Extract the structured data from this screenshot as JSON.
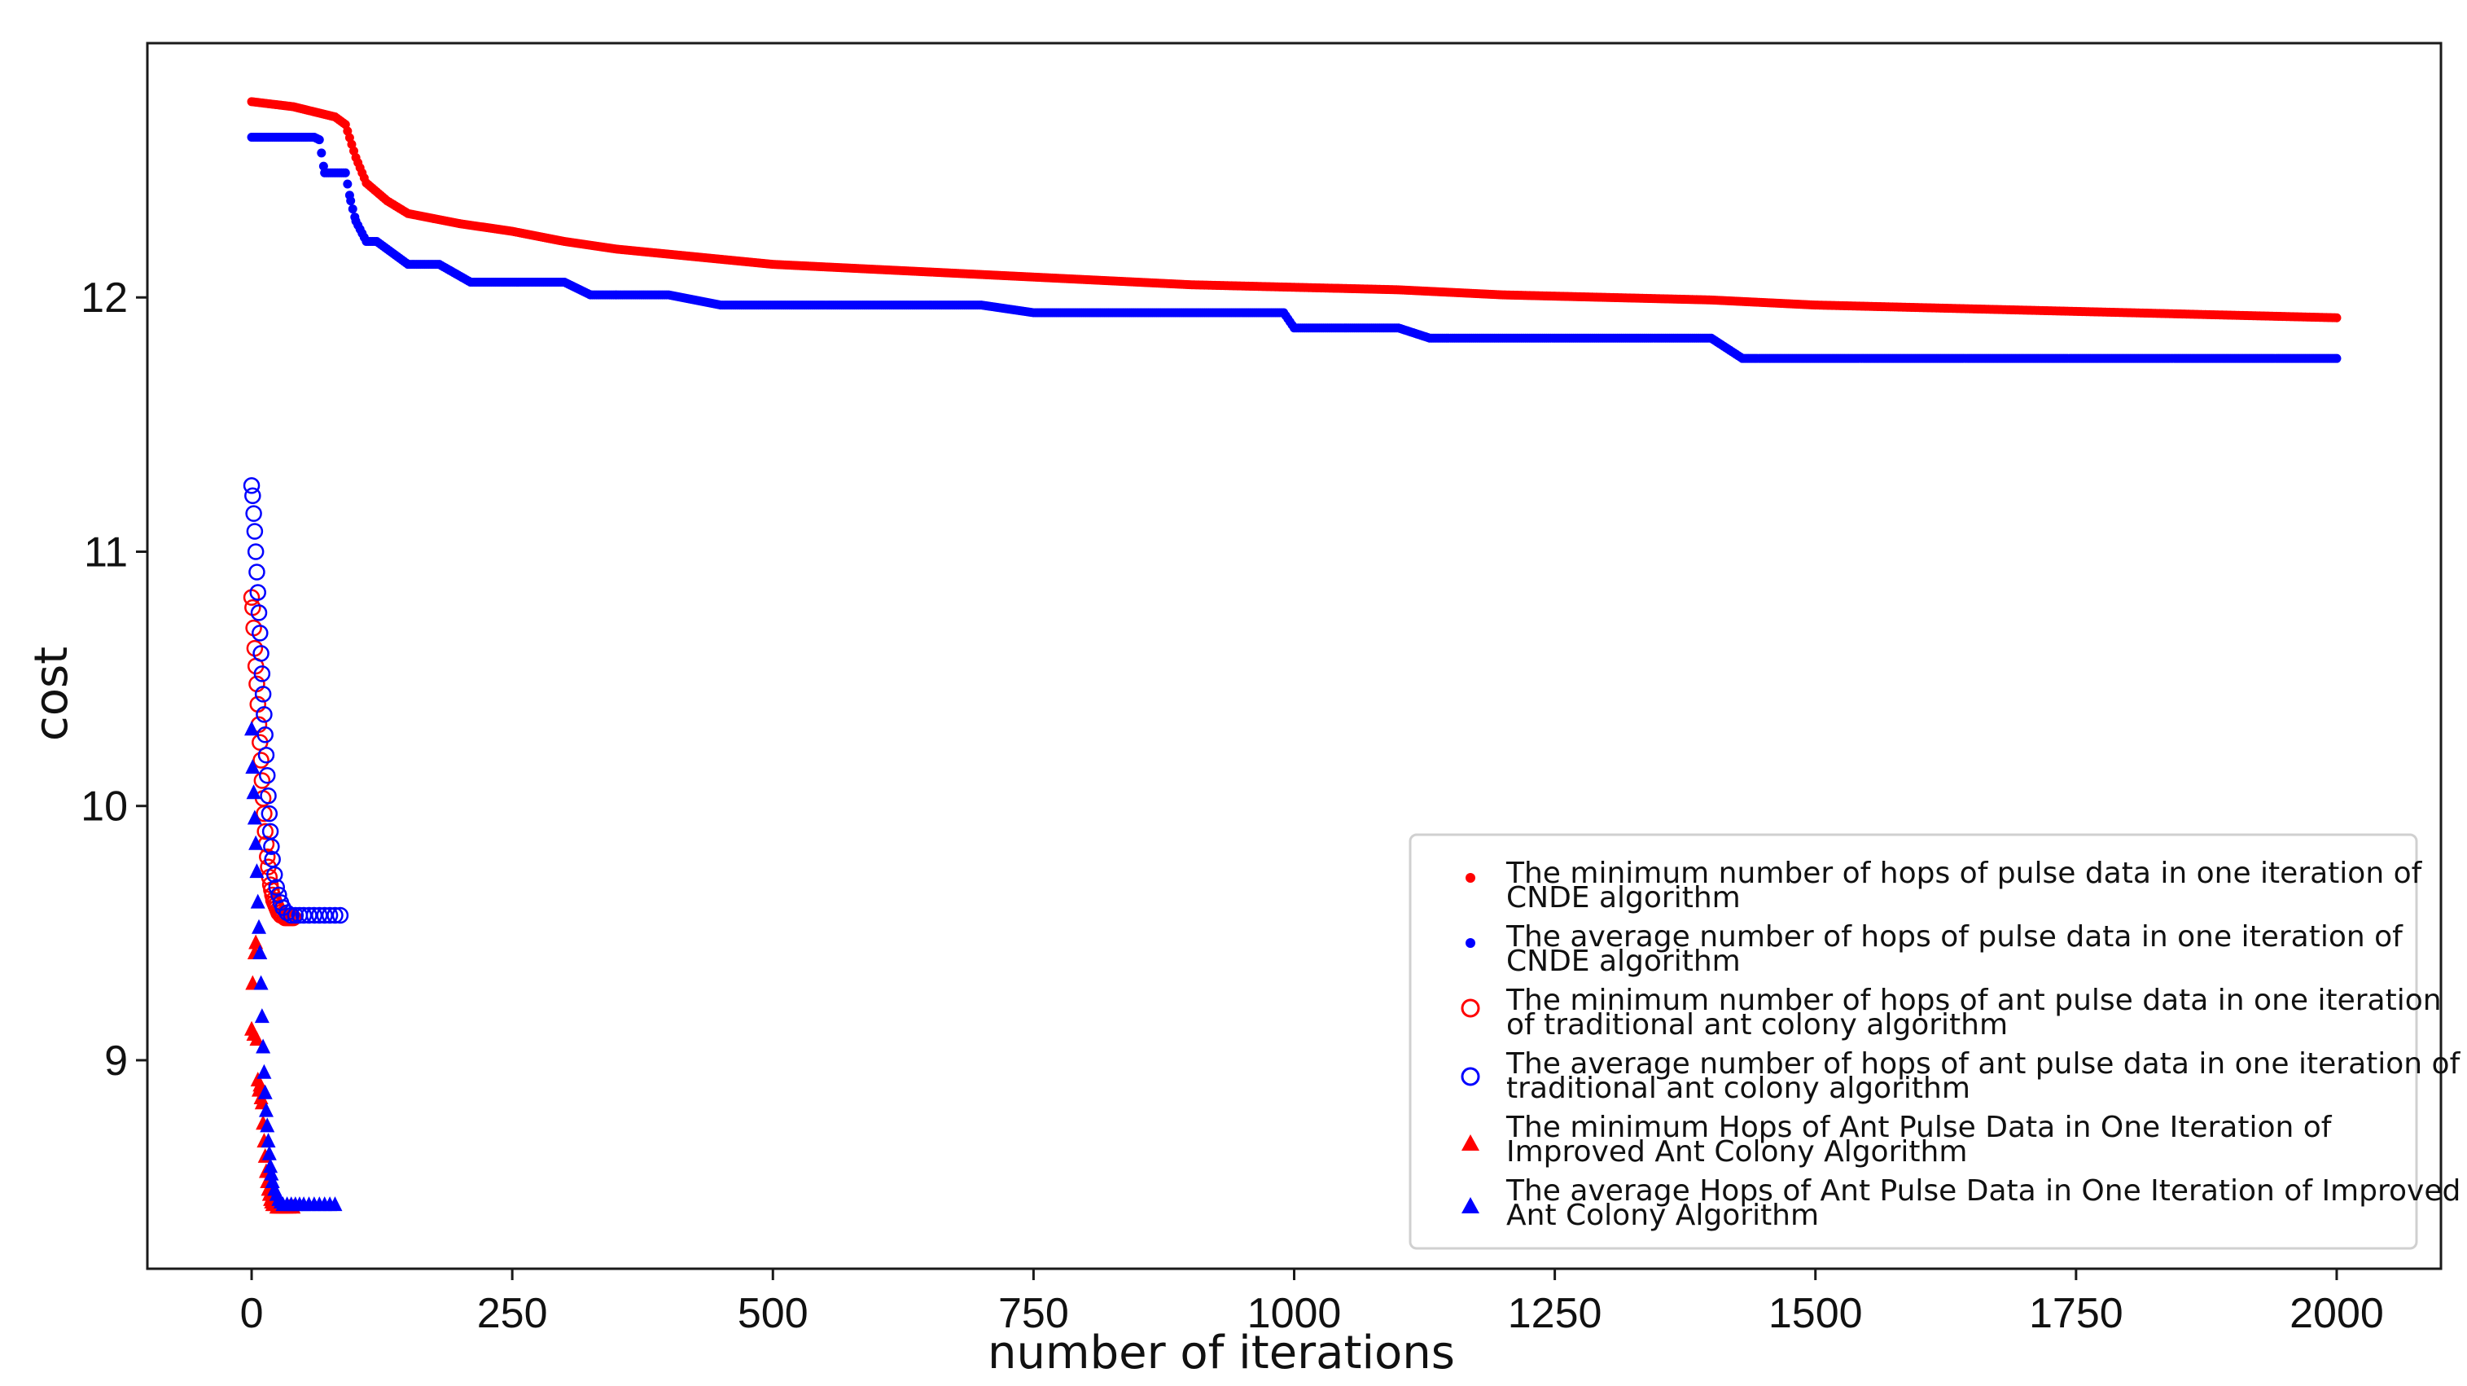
{
  "chart_data": {
    "type": "scatter",
    "title": "",
    "xlabel": "number of iterations",
    "ylabel": "cost",
    "xlim": [
      -100,
      2100
    ],
    "ylim": [
      8.18,
      13.0
    ],
    "xticks": [
      0,
      250,
      500,
      750,
      1000,
      1250,
      1500,
      1750,
      2000
    ],
    "xtick_labels": [
      "0",
      "250",
      "500",
      "750",
      "1000",
      "1250",
      "1500",
      "1750",
      "2000"
    ],
    "yticks": [
      9,
      10,
      11,
      12
    ],
    "ytick_labels": [
      "9",
      "10",
      "11",
      "12"
    ],
    "grid": false,
    "legend_position": "lower-right",
    "series": [
      {
        "id": "cnde-min",
        "name": "The minimum number of hops of pulse data in one iteration of CNDE algorithm",
        "legend_lines": [
          "The minimum number of hops of pulse data in one iteration of",
          "CNDE algorithm"
        ],
        "marker": "dot",
        "color": "#ff0000",
        "x": [
          0,
          20,
          40,
          60,
          80,
          90,
          100,
          110,
          130,
          150,
          175,
          200,
          250,
          300,
          350,
          400,
          450,
          500,
          600,
          700,
          800,
          900,
          1000,
          1100,
          1200,
          1300,
          1400,
          1500,
          1600,
          1700,
          1800,
          1900,
          2000
        ],
        "y": [
          12.77,
          12.76,
          12.75,
          12.73,
          12.71,
          12.68,
          12.55,
          12.45,
          12.38,
          12.33,
          12.31,
          12.29,
          12.26,
          12.22,
          12.19,
          12.17,
          12.15,
          12.13,
          12.11,
          12.09,
          12.07,
          12.05,
          12.04,
          12.03,
          12.01,
          12.0,
          11.99,
          11.97,
          11.96,
          11.95,
          11.94,
          11.93,
          11.92
        ]
      },
      {
        "id": "cnde-avg",
        "name": "The average number of hops of pulse data in one iteration of CNDE algorithm",
        "legend_lines": [
          "The average number of hops of pulse data in one iteration of",
          "CNDE algorithm"
        ],
        "marker": "dot",
        "color": "#0000ff",
        "x": [
          0,
          20,
          40,
          60,
          65,
          70,
          80,
          90,
          95,
          100,
          110,
          120,
          150,
          180,
          210,
          250,
          300,
          325,
          350,
          400,
          450,
          500,
          600,
          700,
          750,
          800,
          900,
          990,
          1000,
          1100,
          1130,
          1200,
          1300,
          1400,
          1430,
          1500,
          1600,
          1700,
          1800,
          1900,
          2000
        ],
        "y": [
          12.63,
          12.63,
          12.63,
          12.63,
          12.62,
          12.49,
          12.49,
          12.49,
          12.38,
          12.3,
          12.22,
          12.22,
          12.13,
          12.13,
          12.06,
          12.06,
          12.06,
          12.01,
          12.01,
          12.01,
          11.97,
          11.97,
          11.97,
          11.97,
          11.94,
          11.94,
          11.94,
          11.94,
          11.88,
          11.88,
          11.84,
          11.84,
          11.84,
          11.84,
          11.76,
          11.76,
          11.76,
          11.76,
          11.76,
          11.76,
          11.76
        ]
      },
      {
        "id": "trad-min",
        "name": "The minimum number of hops of ant pulse data in one iteration of traditional ant colony algorithm",
        "legend_lines": [
          "The minimum number of hops of ant pulse data in one iteration",
          "of traditional ant colony algorithm"
        ],
        "marker": "circle-open",
        "color": "#ff0000",
        "x": [
          0,
          1,
          2,
          3,
          4,
          5,
          6,
          7,
          8,
          9,
          10,
          11,
          12,
          13,
          14,
          15,
          16,
          17,
          18,
          19,
          20,
          21,
          22,
          23,
          24,
          25,
          26,
          27,
          28,
          29,
          30,
          32,
          34,
          36,
          38,
          40
        ],
        "y": [
          10.82,
          10.78,
          10.7,
          10.62,
          10.55,
          10.48,
          10.4,
          10.32,
          10.25,
          10.18,
          10.1,
          10.03,
          9.97,
          9.9,
          9.85,
          9.8,
          9.76,
          9.72,
          9.69,
          9.67,
          9.65,
          9.63,
          9.62,
          9.61,
          9.6,
          9.59,
          9.58,
          9.58,
          9.57,
          9.57,
          9.57,
          9.56,
          9.56,
          9.56,
          9.56,
          9.56
        ]
      },
      {
        "id": "trad-avg",
        "name": "The average number of hops of ant pulse data in one iteration of traditional ant colony algorithm",
        "legend_lines": [
          "The average number of hops of ant pulse data in one iteration of",
          "traditional ant colony algorithm"
        ],
        "marker": "circle-open",
        "color": "#0000ff",
        "x": [
          0,
          1,
          2,
          3,
          4,
          5,
          6,
          7,
          8,
          9,
          10,
          11,
          12,
          13,
          14,
          15,
          16,
          17,
          18,
          19,
          20,
          22,
          24,
          26,
          28,
          30,
          34,
          38,
          42,
          46,
          50,
          55,
          60,
          65,
          70,
          75,
          80,
          85
        ],
        "y": [
          11.26,
          11.22,
          11.15,
          11.08,
          11.0,
          10.92,
          10.84,
          10.76,
          10.68,
          10.6,
          10.52,
          10.44,
          10.36,
          10.28,
          10.2,
          10.12,
          10.04,
          9.97,
          9.9,
          9.84,
          9.79,
          9.73,
          9.68,
          9.65,
          9.62,
          9.6,
          9.58,
          9.57,
          9.57,
          9.57,
          9.57,
          9.57,
          9.57,
          9.57,
          9.57,
          9.57,
          9.57,
          9.57
        ]
      },
      {
        "id": "impr-min",
        "name": "The minimum Hops of Ant Pulse Data in One Iteration of Improved Ant Colony Algorithm",
        "legend_lines": [
          "The minimum Hops of Ant Pulse Data in One Iteration of",
          "Improved Ant Colony Algorithm"
        ],
        "marker": "triangle",
        "color": "#ff0000",
        "x": [
          0,
          1,
          2,
          3,
          4,
          5,
          6,
          7,
          8,
          9,
          10,
          11,
          12,
          13,
          14,
          15,
          16,
          17,
          18,
          19,
          20,
          22,
          24,
          26,
          28,
          30,
          33,
          36,
          40
        ],
        "y": [
          9.12,
          9.3,
          9.1,
          9.42,
          9.46,
          9.08,
          8.92,
          8.88,
          8.9,
          8.85,
          8.83,
          8.75,
          8.68,
          8.62,
          8.56,
          8.52,
          8.49,
          8.47,
          8.45,
          8.44,
          8.43,
          8.43,
          8.42,
          8.42,
          8.42,
          8.42,
          8.42,
          8.42,
          8.42
        ]
      },
      {
        "id": "impr-avg",
        "name": "The average Hops of Ant Pulse Data in One Iteration of Improved Ant Colony Algorithm",
        "legend_lines": [
          "The average Hops of Ant Pulse Data in One Iteration of Improved",
          "Ant Colony Algorithm"
        ],
        "marker": "triangle",
        "color": "#0000ff",
        "x": [
          0,
          1,
          2,
          3,
          4,
          5,
          6,
          7,
          8,
          9,
          10,
          11,
          12,
          13,
          14,
          15,
          16,
          17,
          18,
          19,
          20,
          22,
          24,
          26,
          28,
          30,
          34,
          38,
          42,
          46,
          50,
          55,
          60,
          65,
          70,
          75,
          80
        ],
        "y": [
          10.3,
          10.15,
          10.05,
          9.95,
          9.85,
          9.74,
          9.62,
          9.52,
          9.42,
          9.3,
          9.17,
          9.05,
          8.95,
          8.87,
          8.8,
          8.74,
          8.68,
          8.63,
          8.58,
          8.55,
          8.52,
          8.49,
          8.47,
          8.45,
          8.44,
          8.43,
          8.43,
          8.43,
          8.43,
          8.43,
          8.43,
          8.43,
          8.43,
          8.43,
          8.43,
          8.43,
          8.43
        ]
      }
    ]
  }
}
